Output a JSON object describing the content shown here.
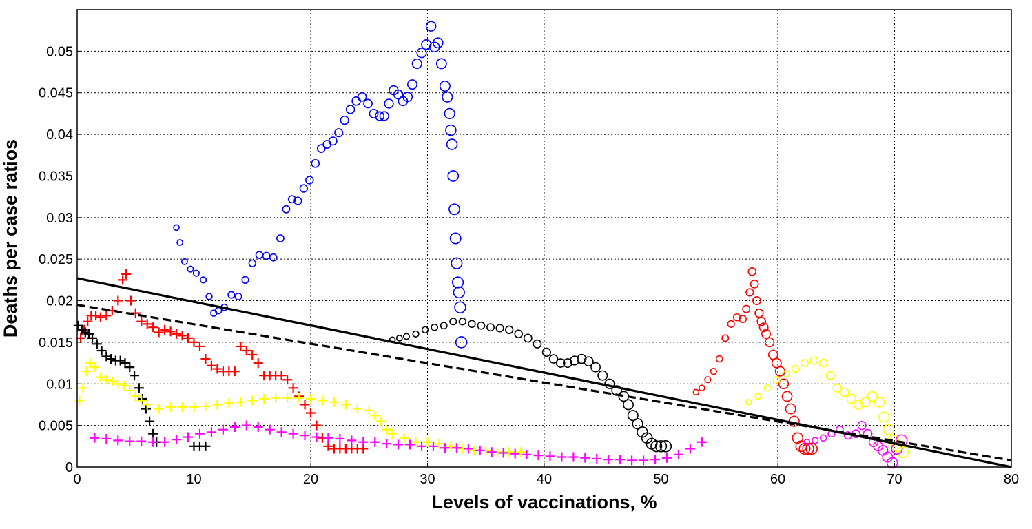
{
  "chart_data": {
    "type": "scatter",
    "title": "",
    "xlabel": "Levels of vaccinations, %",
    "ylabel": "Deaths per case ratios",
    "xlim": [
      0,
      80
    ],
    "ylim": [
      0,
      0.055
    ],
    "xticks": [
      "0",
      "10",
      "20",
      "30",
      "40",
      "50",
      "60",
      "70",
      "80"
    ],
    "yticks": [
      "0",
      "0.005",
      "0.01",
      "0.015",
      "0.02",
      "0.025",
      "0.03",
      "0.035",
      "0.04",
      "0.045",
      "0.05"
    ],
    "grid": true,
    "series": [
      {
        "marker": "circle",
        "color": "#0000ff",
        "x": [
          8.5,
          8.8,
          9.2,
          9.7,
          10.2,
          10.8,
          11.3,
          11.7,
          12.1,
          12.6,
          13.2,
          13.8,
          14.4,
          15.0,
          15.6,
          16.2,
          16.8,
          17.4,
          17.9,
          18.4,
          18.9,
          19.4,
          19.9,
          20.4,
          20.9,
          21.4,
          21.9,
          22.4,
          22.9,
          23.4,
          23.9,
          24.4,
          24.9,
          25.4,
          25.9,
          26.3,
          26.7,
          27.1,
          27.5,
          27.9,
          28.3,
          28.7,
          29.1,
          29.5,
          29.9,
          30.3,
          30.6,
          30.9,
          31.2,
          31.5,
          31.7,
          31.9,
          32.0,
          32.1,
          32.2,
          32.3,
          32.4,
          32.5,
          32.6,
          32.7,
          32.8,
          32.9
        ],
        "y": [
          0.0288,
          0.027,
          0.0247,
          0.0238,
          0.0233,
          0.0225,
          0.0205,
          0.0185,
          0.0188,
          0.0192,
          0.0207,
          0.0205,
          0.0225,
          0.0245,
          0.0255,
          0.0254,
          0.0252,
          0.0275,
          0.031,
          0.0322,
          0.032,
          0.0335,
          0.0345,
          0.0365,
          0.0383,
          0.0388,
          0.0392,
          0.0402,
          0.0417,
          0.043,
          0.044,
          0.0445,
          0.0437,
          0.0425,
          0.0422,
          0.0422,
          0.0437,
          0.0453,
          0.0448,
          0.044,
          0.0445,
          0.046,
          0.0485,
          0.0498,
          0.0508,
          0.053,
          0.0505,
          0.051,
          0.0485,
          0.0458,
          0.0445,
          0.0425,
          0.0405,
          0.0388,
          0.035,
          0.031,
          0.0275,
          0.0245,
          0.0222,
          0.021,
          0.0192,
          0.015
        ]
      },
      {
        "marker": "circle",
        "color": "#000000",
        "x": [
          27.0,
          27.6,
          28.2,
          29.0,
          29.8,
          30.6,
          31.4,
          32.2,
          33.0,
          33.8,
          34.6,
          35.4,
          36.2,
          37.0,
          37.8,
          38.6,
          39.4,
          40.2,
          40.8,
          41.4,
          42.0,
          42.6,
          43.2,
          43.8,
          44.4,
          45.0,
          45.6,
          46.2,
          46.8,
          47.2,
          47.6,
          48.0,
          48.4,
          48.8,
          49.2,
          49.6,
          50.0,
          50.4
        ],
        "y": [
          0.0153,
          0.0155,
          0.0157,
          0.016,
          0.0165,
          0.0168,
          0.017,
          0.0175,
          0.0175,
          0.0172,
          0.017,
          0.0168,
          0.0167,
          0.0165,
          0.016,
          0.0155,
          0.0148,
          0.0138,
          0.013,
          0.0125,
          0.0125,
          0.0128,
          0.013,
          0.0127,
          0.012,
          0.011,
          0.01,
          0.0092,
          0.0085,
          0.0075,
          0.0062,
          0.0052,
          0.0042,
          0.0035,
          0.0028,
          0.0025,
          0.0025,
          0.0025
        ]
      },
      {
        "marker": "circle",
        "color": "#ff0000",
        "x": [
          53.0,
          53.5,
          54.0,
          54.5,
          55.0,
          55.5,
          56.0,
          56.5,
          57.0,
          57.3,
          57.6,
          57.8,
          58.0,
          58.2,
          58.4,
          58.6,
          58.8,
          59.0,
          59.3,
          59.6,
          59.9,
          60.2,
          60.5,
          60.8,
          61.1,
          61.4,
          61.7,
          62.0,
          62.3,
          62.6,
          62.9
        ],
        "y": [
          0.009,
          0.0095,
          0.0105,
          0.0115,
          0.013,
          0.0155,
          0.0172,
          0.018,
          0.0178,
          0.019,
          0.021,
          0.0235,
          0.022,
          0.02,
          0.0185,
          0.0175,
          0.0168,
          0.016,
          0.015,
          0.0135,
          0.0125,
          0.0115,
          0.01,
          0.0085,
          0.007,
          0.0055,
          0.0035,
          0.0025,
          0.0022,
          0.0022,
          0.0022
        ]
      },
      {
        "marker": "circle",
        "color": "#ffff00",
        "x": [
          57.5,
          58.3,
          59.1,
          59.9,
          60.7,
          61.5,
          62.3,
          63.1,
          63.9,
          64.5,
          65.1,
          65.7,
          66.3,
          66.9,
          67.5,
          68.1,
          68.7,
          69.1,
          69.5,
          69.9,
          70.3,
          70.7
        ],
        "y": [
          0.0078,
          0.0085,
          0.0095,
          0.0105,
          0.0112,
          0.0118,
          0.0125,
          0.0128,
          0.0125,
          0.011,
          0.0095,
          0.009,
          0.0082,
          0.0075,
          0.0078,
          0.0085,
          0.0078,
          0.006,
          0.0045,
          0.0032,
          0.0025,
          0.0018
        ]
      },
      {
        "marker": "circle",
        "color": "#ff00ff",
        "x": [
          62.5,
          63.2,
          63.9,
          64.6,
          65.3,
          66.0,
          66.7,
          67.2,
          67.7,
          68.2,
          68.6,
          69.0,
          69.4,
          69.8,
          70.2,
          70.6
        ],
        "y": [
          0.003,
          0.0032,
          0.0035,
          0.004,
          0.0045,
          0.0038,
          0.004,
          0.005,
          0.004,
          0.003,
          0.0025,
          0.002,
          0.0012,
          0.0005,
          0.0022,
          0.0032
        ]
      },
      {
        "marker": "plus",
        "color": "#ff0000",
        "x": [
          0.3,
          0.6,
          0.9,
          1.2,
          1.6,
          2.0,
          2.5,
          3.0,
          3.5,
          3.9,
          4.2,
          4.6,
          5.0,
          5.5,
          6.0,
          6.5,
          7.0,
          7.5,
          8.0,
          8.5,
          9.0,
          9.5,
          10.0,
          10.5,
          11.0,
          11.5,
          12.0,
          12.5,
          13.0,
          13.5,
          14.0,
          14.5,
          15.0,
          15.5,
          16.0,
          16.5,
          17.0,
          17.5,
          18.0,
          18.5,
          19.0,
          19.5,
          20.0,
          20.5,
          21.0,
          21.5,
          22.0,
          22.5,
          23.0,
          23.5,
          24.0,
          24.5
        ],
        "y": [
          0.0155,
          0.0165,
          0.0175,
          0.0182,
          0.0182,
          0.018,
          0.0182,
          0.0188,
          0.02,
          0.0225,
          0.0232,
          0.02,
          0.0185,
          0.0175,
          0.0172,
          0.0168,
          0.0162,
          0.0165,
          0.0163,
          0.016,
          0.0158,
          0.0155,
          0.015,
          0.0145,
          0.013,
          0.0122,
          0.0118,
          0.0115,
          0.0115,
          0.0115,
          0.0145,
          0.014,
          0.0135,
          0.0125,
          0.011,
          0.011,
          0.011,
          0.011,
          0.0105,
          0.0095,
          0.0085,
          0.0075,
          0.0065,
          0.005,
          0.0035,
          0.0025,
          0.0022,
          0.0022,
          0.0022,
          0.0022,
          0.0022,
          0.0022
        ]
      },
      {
        "marker": "plus",
        "color": "#000000",
        "x": [
          0.1,
          0.4,
          0.7,
          1.0,
          1.3,
          1.7,
          2.1,
          2.5,
          2.9,
          3.3,
          3.7,
          4.1,
          4.5,
          4.9,
          5.3,
          5.6,
          5.9,
          6.2,
          6.5,
          6.8,
          10.0,
          10.5,
          11.0
        ],
        "y": [
          0.017,
          0.0165,
          0.0162,
          0.016,
          0.0155,
          0.0148,
          0.014,
          0.0133,
          0.013,
          0.0128,
          0.0128,
          0.0125,
          0.012,
          0.011,
          0.0095,
          0.0082,
          0.007,
          0.0055,
          0.004,
          0.003,
          0.0025,
          0.0025,
          0.0025
        ]
      },
      {
        "marker": "plus",
        "color": "#ffff00",
        "x": [
          0.2,
          0.5,
          0.8,
          1.1,
          1.5,
          2.0,
          2.5,
          3.0,
          3.5,
          4.0,
          4.5,
          5.0,
          5.5,
          6.0,
          7.0,
          8.0,
          9.0,
          10.0,
          11.0,
          12.0,
          13.0,
          14.0,
          15.0,
          16.0,
          17.0,
          18.0,
          19.0,
          20.0,
          21.0,
          22.0,
          23.0,
          24.0,
          25.0,
          25.5,
          26.0,
          26.5,
          27.0,
          28.0,
          29.0,
          30.0,
          31.0,
          32.0,
          33.0,
          34.0,
          35.0,
          36.0,
          37.0,
          38.0
        ],
        "y": [
          0.008,
          0.0095,
          0.0115,
          0.0125,
          0.012,
          0.0108,
          0.0105,
          0.0103,
          0.01,
          0.0098,
          0.0092,
          0.0085,
          0.008,
          0.0075,
          0.007,
          0.0072,
          0.0072,
          0.0072,
          0.0073,
          0.0075,
          0.0077,
          0.0078,
          0.008,
          0.0082,
          0.0083,
          0.0083,
          0.0083,
          0.0082,
          0.008,
          0.0078,
          0.0075,
          0.007,
          0.0068,
          0.0062,
          0.0055,
          0.0045,
          0.004,
          0.0035,
          0.003,
          0.003,
          0.0028,
          0.0025,
          0.0022,
          0.002,
          0.002,
          0.0018,
          0.0018,
          0.0018
        ]
      },
      {
        "marker": "plus",
        "color": "#ff00ff",
        "x": [
          1.5,
          2.5,
          3.5,
          4.5,
          5.5,
          6.5,
          7.5,
          8.5,
          9.5,
          10.5,
          11.5,
          12.5,
          13.5,
          14.5,
          15.5,
          16.5,
          17.5,
          18.5,
          19.5,
          20.5,
          21.5,
          22.5,
          23.5,
          24.5,
          25.5,
          26.5,
          27.5,
          28.5,
          29.5,
          30.5,
          31.5,
          32.5,
          33.5,
          34.5,
          35.5,
          36.5,
          37.5,
          38.5,
          39.5,
          40.5,
          41.5,
          42.5,
          43.5,
          44.5,
          45.5,
          46.5,
          47.5,
          48.5,
          49.5,
          50.5,
          51.5,
          52.5,
          53.5
        ],
        "y": [
          0.0035,
          0.0034,
          0.0032,
          0.0031,
          0.0031,
          0.003,
          0.003,
          0.0033,
          0.0036,
          0.004,
          0.0042,
          0.0045,
          0.0048,
          0.005,
          0.0048,
          0.0045,
          0.0042,
          0.004,
          0.0038,
          0.0036,
          0.0035,
          0.0034,
          0.0032,
          0.003,
          0.003,
          0.0028,
          0.0027,
          0.0027,
          0.0025,
          0.0025,
          0.0023,
          0.0023,
          0.0022,
          0.002,
          0.0018,
          0.0017,
          0.0016,
          0.0015,
          0.0014,
          0.0013,
          0.0012,
          0.0012,
          0.0011,
          0.001,
          0.0009,
          0.0009,
          0.0008,
          0.0008,
          0.0009,
          0.0011,
          0.0015,
          0.0022,
          0.003
        ]
      }
    ],
    "lines": [
      {
        "style": "solid",
        "color": "#000000",
        "x": [
          0,
          80
        ],
        "y": [
          0.0227,
          0.0
        ]
      },
      {
        "style": "dashed",
        "color": "#000000",
        "x": [
          0,
          80
        ],
        "y": [
          0.0195,
          0.0008
        ]
      }
    ]
  }
}
